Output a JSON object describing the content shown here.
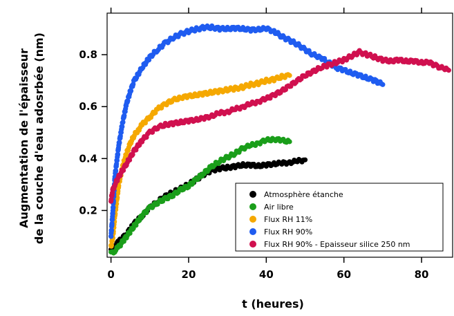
{
  "chart_data": {
    "type": "scatter",
    "title": "",
    "xlabel": "t (heures)",
    "ylabel_lines": [
      "Augmentation de l'épaisseur",
      "de la couche d'eau adosrbée (nm)"
    ],
    "xlim": [
      -1,
      88
    ],
    "ylim": [
      0.02,
      0.96
    ],
    "xticks": [
      0,
      20,
      40,
      60,
      80
    ],
    "xtick_labels": [
      "0",
      "20",
      "40",
      "60",
      "80"
    ],
    "yticks": [
      0.2,
      0.4,
      0.6,
      0.8
    ],
    "ytick_labels": [
      "0.2",
      "0.4",
      "0.6",
      "0.8"
    ],
    "grid": false,
    "legend_position": "bottom-right",
    "series": [
      {
        "name": "Atmosphère étanche",
        "color": "#000000",
        "points": [
          [
            0,
            0.05
          ],
          [
            1,
            0.065
          ],
          [
            2,
            0.08
          ],
          [
            4,
            0.11
          ],
          [
            6,
            0.15
          ],
          [
            8,
            0.18
          ],
          [
            10,
            0.21
          ],
          [
            12,
            0.235
          ],
          [
            14,
            0.255
          ],
          [
            16,
            0.27
          ],
          [
            18,
            0.285
          ],
          [
            20,
            0.3
          ],
          [
            22,
            0.32
          ],
          [
            24,
            0.34
          ],
          [
            26,
            0.355
          ],
          [
            28,
            0.362
          ],
          [
            30,
            0.365
          ],
          [
            32,
            0.37
          ],
          [
            34,
            0.375
          ],
          [
            36,
            0.375
          ],
          [
            38,
            0.372
          ],
          [
            40,
            0.375
          ],
          [
            42,
            0.38
          ],
          [
            44,
            0.382
          ],
          [
            46,
            0.385
          ],
          [
            48,
            0.39
          ],
          [
            50,
            0.395
          ]
        ]
      },
      {
        "name": "Air libre",
        "color": "#1a9e1a",
        "points": [
          [
            0,
            0.035
          ],
          [
            1,
            0.045
          ],
          [
            2,
            0.06
          ],
          [
            4,
            0.1
          ],
          [
            6,
            0.14
          ],
          [
            8,
            0.18
          ],
          [
            10,
            0.21
          ],
          [
            12,
            0.23
          ],
          [
            14,
            0.245
          ],
          [
            16,
            0.26
          ],
          [
            18,
            0.28
          ],
          [
            20,
            0.295
          ],
          [
            22,
            0.32
          ],
          [
            24,
            0.345
          ],
          [
            26,
            0.37
          ],
          [
            28,
            0.39
          ],
          [
            30,
            0.405
          ],
          [
            32,
            0.42
          ],
          [
            34,
            0.44
          ],
          [
            36,
            0.45
          ],
          [
            38,
            0.46
          ],
          [
            40,
            0.47
          ],
          [
            42,
            0.475
          ],
          [
            44,
            0.47
          ],
          [
            46,
            0.465
          ]
        ]
      },
      {
        "name": "Flux RH 11%",
        "color": "#f5a800",
        "points": [
          [
            0,
            0.06
          ],
          [
            0.5,
            0.1
          ],
          [
            1,
            0.18
          ],
          [
            2,
            0.3
          ],
          [
            3,
            0.37
          ],
          [
            4,
            0.42
          ],
          [
            5,
            0.46
          ],
          [
            6,
            0.49
          ],
          [
            7,
            0.51
          ],
          [
            8,
            0.53
          ],
          [
            10,
            0.56
          ],
          [
            12,
            0.59
          ],
          [
            14,
            0.61
          ],
          [
            16,
            0.625
          ],
          [
            18,
            0.635
          ],
          [
            20,
            0.64
          ],
          [
            22,
            0.645
          ],
          [
            24,
            0.65
          ],
          [
            26,
            0.655
          ],
          [
            28,
            0.66
          ],
          [
            30,
            0.665
          ],
          [
            32,
            0.67
          ],
          [
            34,
            0.675
          ],
          [
            36,
            0.685
          ],
          [
            38,
            0.69
          ],
          [
            40,
            0.7
          ],
          [
            42,
            0.705
          ],
          [
            44,
            0.715
          ],
          [
            46,
            0.72
          ]
        ]
      },
      {
        "name": "Flux RH 90%",
        "color": "#1f5cf0",
        "points": [
          [
            0,
            0.1
          ],
          [
            0.5,
            0.2
          ],
          [
            1,
            0.33
          ],
          [
            2,
            0.45
          ],
          [
            3,
            0.54
          ],
          [
            4,
            0.61
          ],
          [
            5,
            0.66
          ],
          [
            6,
            0.7
          ],
          [
            8,
            0.75
          ],
          [
            10,
            0.79
          ],
          [
            12,
            0.82
          ],
          [
            14,
            0.845
          ],
          [
            16,
            0.865
          ],
          [
            18,
            0.88
          ],
          [
            20,
            0.89
          ],
          [
            22,
            0.898
          ],
          [
            24,
            0.905
          ],
          [
            26,
            0.905
          ],
          [
            28,
            0.9
          ],
          [
            30,
            0.9
          ],
          [
            32,
            0.902
          ],
          [
            34,
            0.9
          ],
          [
            36,
            0.895
          ],
          [
            38,
            0.898
          ],
          [
            40,
            0.9
          ],
          [
            42,
            0.89
          ],
          [
            44,
            0.87
          ],
          [
            46,
            0.855
          ],
          [
            48,
            0.84
          ],
          [
            50,
            0.82
          ],
          [
            52,
            0.8
          ],
          [
            54,
            0.79
          ],
          [
            56,
            0.77
          ],
          [
            58,
            0.75
          ],
          [
            60,
            0.74
          ],
          [
            62,
            0.73
          ],
          [
            64,
            0.72
          ],
          [
            66,
            0.71
          ],
          [
            68,
            0.7
          ],
          [
            70,
            0.685
          ]
        ]
      },
      {
        "name": "Flux RH 90% - Epaisseur silice 250 nm",
        "color": "#d0104f",
        "points": [
          [
            0,
            0.24
          ],
          [
            0.5,
            0.28
          ],
          [
            1,
            0.3
          ],
          [
            2,
            0.33
          ],
          [
            4,
            0.38
          ],
          [
            6,
            0.43
          ],
          [
            8,
            0.47
          ],
          [
            10,
            0.5
          ],
          [
            12,
            0.52
          ],
          [
            14,
            0.53
          ],
          [
            16,
            0.535
          ],
          [
            18,
            0.54
          ],
          [
            20,
            0.545
          ],
          [
            22,
            0.55
          ],
          [
            24,
            0.555
          ],
          [
            26,
            0.565
          ],
          [
            28,
            0.575
          ],
          [
            30,
            0.58
          ],
          [
            32,
            0.59
          ],
          [
            34,
            0.6
          ],
          [
            36,
            0.61
          ],
          [
            38,
            0.62
          ],
          [
            40,
            0.63
          ],
          [
            42,
            0.645
          ],
          [
            44,
            0.66
          ],
          [
            46,
            0.68
          ],
          [
            48,
            0.7
          ],
          [
            50,
            0.72
          ],
          [
            52,
            0.735
          ],
          [
            54,
            0.75
          ],
          [
            56,
            0.76
          ],
          [
            58,
            0.77
          ],
          [
            60,
            0.78
          ],
          [
            62,
            0.795
          ],
          [
            64,
            0.81
          ],
          [
            66,
            0.8
          ],
          [
            68,
            0.79
          ],
          [
            70,
            0.78
          ],
          [
            72,
            0.775
          ],
          [
            74,
            0.78
          ],
          [
            76,
            0.775
          ],
          [
            78,
            0.775
          ],
          [
            80,
            0.77
          ],
          [
            82,
            0.77
          ],
          [
            84,
            0.755
          ],
          [
            86,
            0.745
          ],
          [
            87,
            0.74
          ]
        ]
      }
    ]
  }
}
